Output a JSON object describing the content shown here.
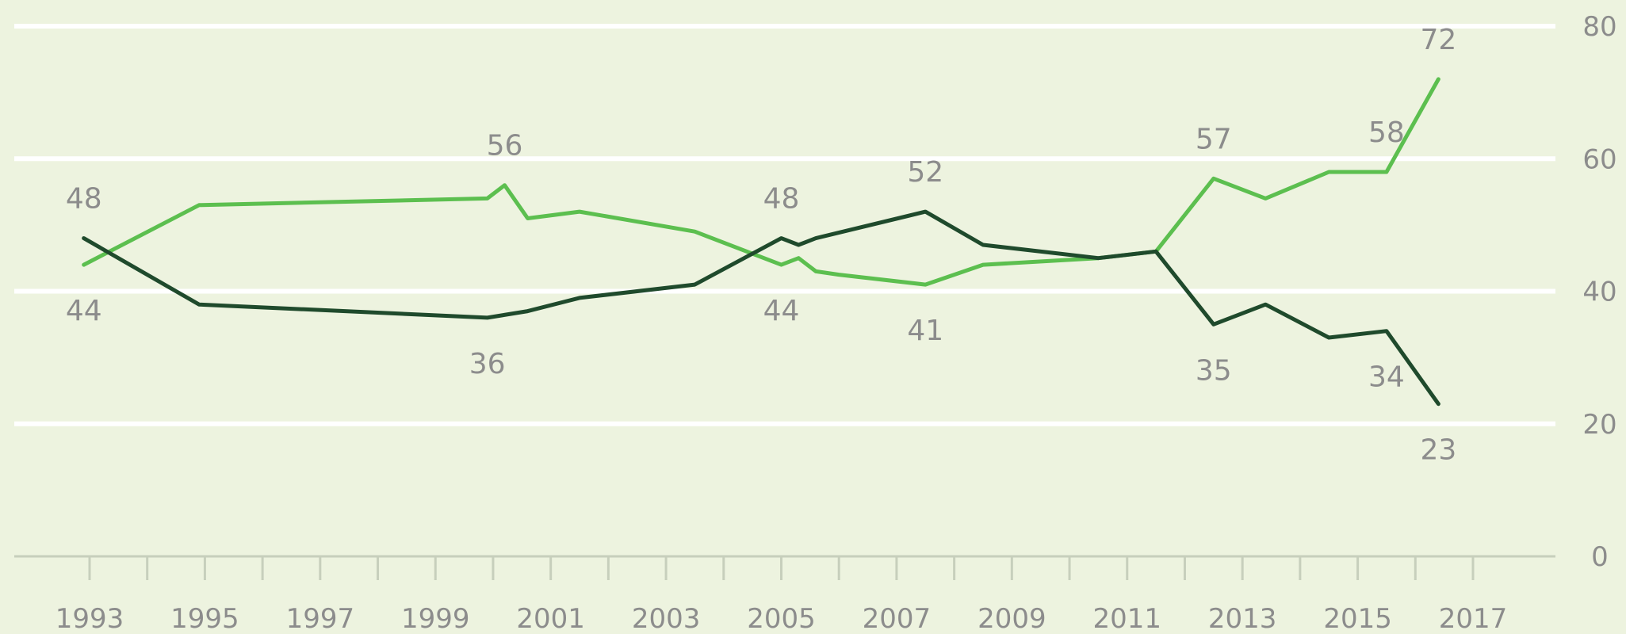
{
  "colors": {
    "background": "#edf3df",
    "gridline": "#ffffff",
    "axis": "#c7cfbc",
    "text": "#8c8c8c",
    "light_series": "#5cbf4f",
    "dark_series": "#1f4a2c"
  },
  "chart_data": {
    "type": "line",
    "title": "",
    "xlabel": "",
    "ylabel": "",
    "xlim": [
      1993,
      2017
    ],
    "ylim": [
      0,
      80
    ],
    "x_ticks": [
      "1993",
      "1995",
      "1997",
      "1999",
      "2001",
      "2003",
      "2005",
      "2007",
      "2009",
      "2011",
      "2013",
      "2015",
      "2017"
    ],
    "y_ticks": [
      "0",
      "20",
      "40",
      "60",
      "80"
    ],
    "grid": true,
    "legend": "none",
    "series": [
      {
        "key": "light",
        "points": [
          {
            "x": 1992.9,
            "y": 44
          },
          {
            "x": 1994.9,
            "y": 53
          },
          {
            "x": 1999.9,
            "y": 54
          },
          {
            "x": 2000.2,
            "y": 56
          },
          {
            "x": 2000.6,
            "y": 51
          },
          {
            "x": 2001.5,
            "y": 52
          },
          {
            "x": 2003.5,
            "y": 49
          },
          {
            "x": 2005.0,
            "y": 44
          },
          {
            "x": 2005.3,
            "y": 45
          },
          {
            "x": 2005.6,
            "y": 43
          },
          {
            "x": 2006.0,
            "y": 42.5
          },
          {
            "x": 2007.5,
            "y": 41
          },
          {
            "x": 2008.5,
            "y": 44
          },
          {
            "x": 2010.5,
            "y": 45
          },
          {
            "x": 2011.5,
            "y": 46
          },
          {
            "x": 2012.5,
            "y": 57
          },
          {
            "x": 2013.4,
            "y": 54
          },
          {
            "x": 2014.5,
            "y": 58
          },
          {
            "x": 2015.5,
            "y": 58
          },
          {
            "x": 2016.4,
            "y": 72
          }
        ]
      },
      {
        "key": "dark",
        "points": [
          {
            "x": 1992.9,
            "y": 48
          },
          {
            "x": 1994.9,
            "y": 38
          },
          {
            "x": 1999.9,
            "y": 36
          },
          {
            "x": 2000.6,
            "y": 37
          },
          {
            "x": 2001.5,
            "y": 39
          },
          {
            "x": 2003.5,
            "y": 41
          },
          {
            "x": 2005.0,
            "y": 48
          },
          {
            "x": 2005.3,
            "y": 47
          },
          {
            "x": 2005.6,
            "y": 48
          },
          {
            "x": 2007.5,
            "y": 52
          },
          {
            "x": 2008.5,
            "y": 47
          },
          {
            "x": 2010.5,
            "y": 45
          },
          {
            "x": 2011.5,
            "y": 46
          },
          {
            "x": 2012.5,
            "y": 35
          },
          {
            "x": 2013.4,
            "y": 38
          },
          {
            "x": 2014.5,
            "y": 33
          },
          {
            "x": 2015.5,
            "y": 34
          },
          {
            "x": 2016.4,
            "y": 23
          }
        ]
      }
    ],
    "data_labels": [
      {
        "series": "dark",
        "x": 1992.9,
        "y": 48,
        "text": "48",
        "position": "above"
      },
      {
        "series": "light",
        "x": 1992.9,
        "y": 44,
        "text": "44",
        "position": "below"
      },
      {
        "series": "light",
        "x": 2000.2,
        "y": 56,
        "text": "56",
        "position": "above"
      },
      {
        "series": "dark",
        "x": 1999.9,
        "y": 36,
        "text": "36",
        "position": "below"
      },
      {
        "series": "dark",
        "x": 2005.0,
        "y": 48,
        "text": "48",
        "position": "above"
      },
      {
        "series": "light",
        "x": 2005.0,
        "y": 44,
        "text": "44",
        "position": "below"
      },
      {
        "series": "dark",
        "x": 2007.5,
        "y": 52,
        "text": "52",
        "position": "above"
      },
      {
        "series": "light",
        "x": 2007.5,
        "y": 41,
        "text": "41",
        "position": "below"
      },
      {
        "series": "light",
        "x": 2012.5,
        "y": 57,
        "text": "57",
        "position": "above"
      },
      {
        "series": "dark",
        "x": 2012.5,
        "y": 35,
        "text": "35",
        "position": "below"
      },
      {
        "series": "light",
        "x": 2015.5,
        "y": 58,
        "text": "58",
        "position": "above"
      },
      {
        "series": "dark",
        "x": 2015.5,
        "y": 34,
        "text": "34",
        "position": "below"
      },
      {
        "series": "light",
        "x": 2016.4,
        "y": 72,
        "text": "72",
        "position": "above"
      },
      {
        "series": "dark",
        "x": 2016.4,
        "y": 23,
        "text": "23",
        "position": "below"
      }
    ]
  }
}
